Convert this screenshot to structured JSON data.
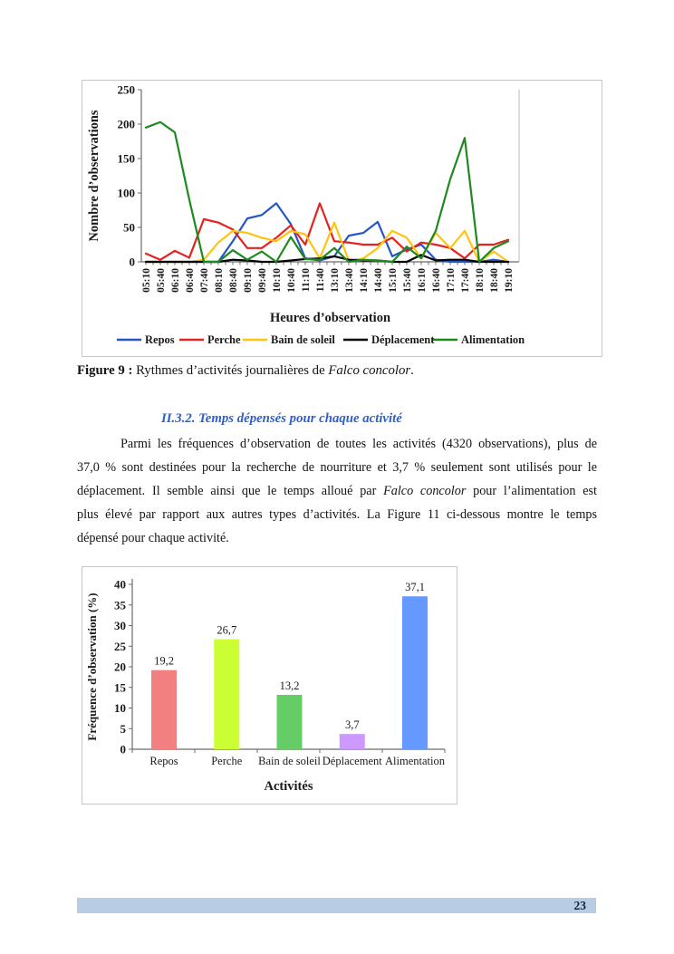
{
  "page": {
    "number": "23"
  },
  "colors": {
    "heading": "#2E5FC8",
    "footer_bar": "#B8CCE4",
    "footer_text": "#17233D",
    "chart_border": "#C6C6C6",
    "axis_line": "#6b6b6b"
  },
  "figure9_caption": {
    "runs": [
      {
        "t": "Figure 9 : ",
        "b": 1
      },
      {
        "t": "Rythmes d’activités journalières de "
      },
      {
        "t": "Falco concolor",
        "i": 1
      },
      {
        "t": "."
      }
    ]
  },
  "section_heading": "II.3.2. Temps dépensés pour chaque activité",
  "paragraph": {
    "lines": [
      {
        "indent": true,
        "runs": [
          {
            "t": "Parmi les fréquences d’observation de toutes les activités (4320 observations), plus de"
          }
        ]
      },
      {
        "runs": [
          {
            "t": "37,0 % sont destinées pour la recherche de nourriture et 3,7 % seulement sont utilisés pour le"
          }
        ]
      },
      {
        "runs": [
          {
            "t": "déplacement. Il semble ainsi que le temps alloué par "
          },
          {
            "t": "Falco concolor",
            "i": 1
          },
          {
            "t": " pour l’alimentation est"
          }
        ]
      },
      {
        "runs": [
          {
            "t": "plus élevé par rapport aux autres types d’activités. La Figure 11 ci-dessous montre le temps"
          }
        ]
      },
      {
        "last": true,
        "runs": [
          {
            "t": "dépensé pour chaque activité."
          }
        ]
      }
    ]
  },
  "chart_data": [
    {
      "type": "line",
      "title": "",
      "xlabel": "Heures d’observation",
      "ylabel": "Nombre d’observations",
      "ylim": [
        0,
        250
      ],
      "yticks": [
        0,
        50,
        100,
        150,
        200,
        250
      ],
      "grid": false,
      "legend_position": "bottom",
      "categories": [
        "05:10",
        "05:40",
        "06:10",
        "06:40",
        "07:40",
        "08:10",
        "08:40",
        "09:10",
        "09:40",
        "10:10",
        "10:40",
        "11:10",
        "11:40",
        "13:10",
        "13:40",
        "14:10",
        "14:40",
        "15:10",
        "15:40",
        "16:10",
        "16:40",
        "17:10",
        "17:40",
        "18:10",
        "18:40",
        "19:10"
      ],
      "series": [
        {
          "name": "Repos",
          "key": "repos",
          "color": "#2456C5",
          "values": [
            0,
            0,
            0,
            0,
            0,
            0,
            30,
            63,
            68,
            85,
            55,
            5,
            2,
            8,
            38,
            42,
            58,
            8,
            18,
            25,
            3,
            0,
            0,
            0,
            3,
            0
          ]
        },
        {
          "name": "Perche",
          "key": "perche",
          "color": "#E32222",
          "values": [
            12,
            3,
            16,
            6,
            62,
            57,
            47,
            20,
            20,
            35,
            53,
            25,
            85,
            30,
            28,
            25,
            25,
            35,
            15,
            28,
            25,
            20,
            5,
            25,
            25,
            32
          ]
        },
        {
          "name": "Bain de soleil",
          "key": "bain-de-soleil",
          "color": "#FFC410",
          "values": [
            0,
            0,
            0,
            0,
            3,
            28,
            45,
            42,
            35,
            30,
            45,
            40,
            5,
            57,
            2,
            5,
            20,
            45,
            35,
            5,
            42,
            20,
            45,
            0,
            15,
            0
          ]
        },
        {
          "name": "Déplacement",
          "key": "deplacement",
          "color": "#000000",
          "values": [
            0,
            0,
            0,
            0,
            0,
            0,
            3,
            2,
            0,
            0,
            2,
            4,
            5,
            8,
            3,
            2,
            2,
            0,
            0,
            10,
            2,
            3,
            3,
            0,
            0,
            0
          ]
        },
        {
          "name": "Alimentation",
          "key": "alimentation",
          "color": "#1E8A1E",
          "values": [
            195,
            203,
            188,
            90,
            0,
            0,
            17,
            3,
            15,
            0,
            36,
            4,
            3,
            20,
            0,
            3,
            2,
            0,
            22,
            5,
            45,
            120,
            180,
            0,
            20,
            30
          ]
        }
      ]
    },
    {
      "type": "bar",
      "title": "",
      "xlabel": "Activités",
      "ylabel": "Fréquence d’observation (%)",
      "ylim": [
        0,
        40
      ],
      "yticks": [
        0,
        5,
        10,
        15,
        20,
        25,
        30,
        35,
        40
      ],
      "grid": false,
      "categories": [
        "Repos",
        "Perche",
        "Bain de soleil",
        "Déplacement",
        "Alimentation"
      ],
      "keys": [
        "repos",
        "perche",
        "bain-de-soleil",
        "deplacement",
        "alimentation"
      ],
      "values": [
        19.2,
        26.7,
        13.2,
        3.7,
        37.1
      ],
      "value_labels": [
        "19,2",
        "26,7",
        "13,2",
        "3,7",
        "37,1"
      ],
      "bar_colors": [
        "#F28080",
        "#CCFF33",
        "#66CC66",
        "#CC99FF",
        "#6699FF"
      ]
    }
  ]
}
